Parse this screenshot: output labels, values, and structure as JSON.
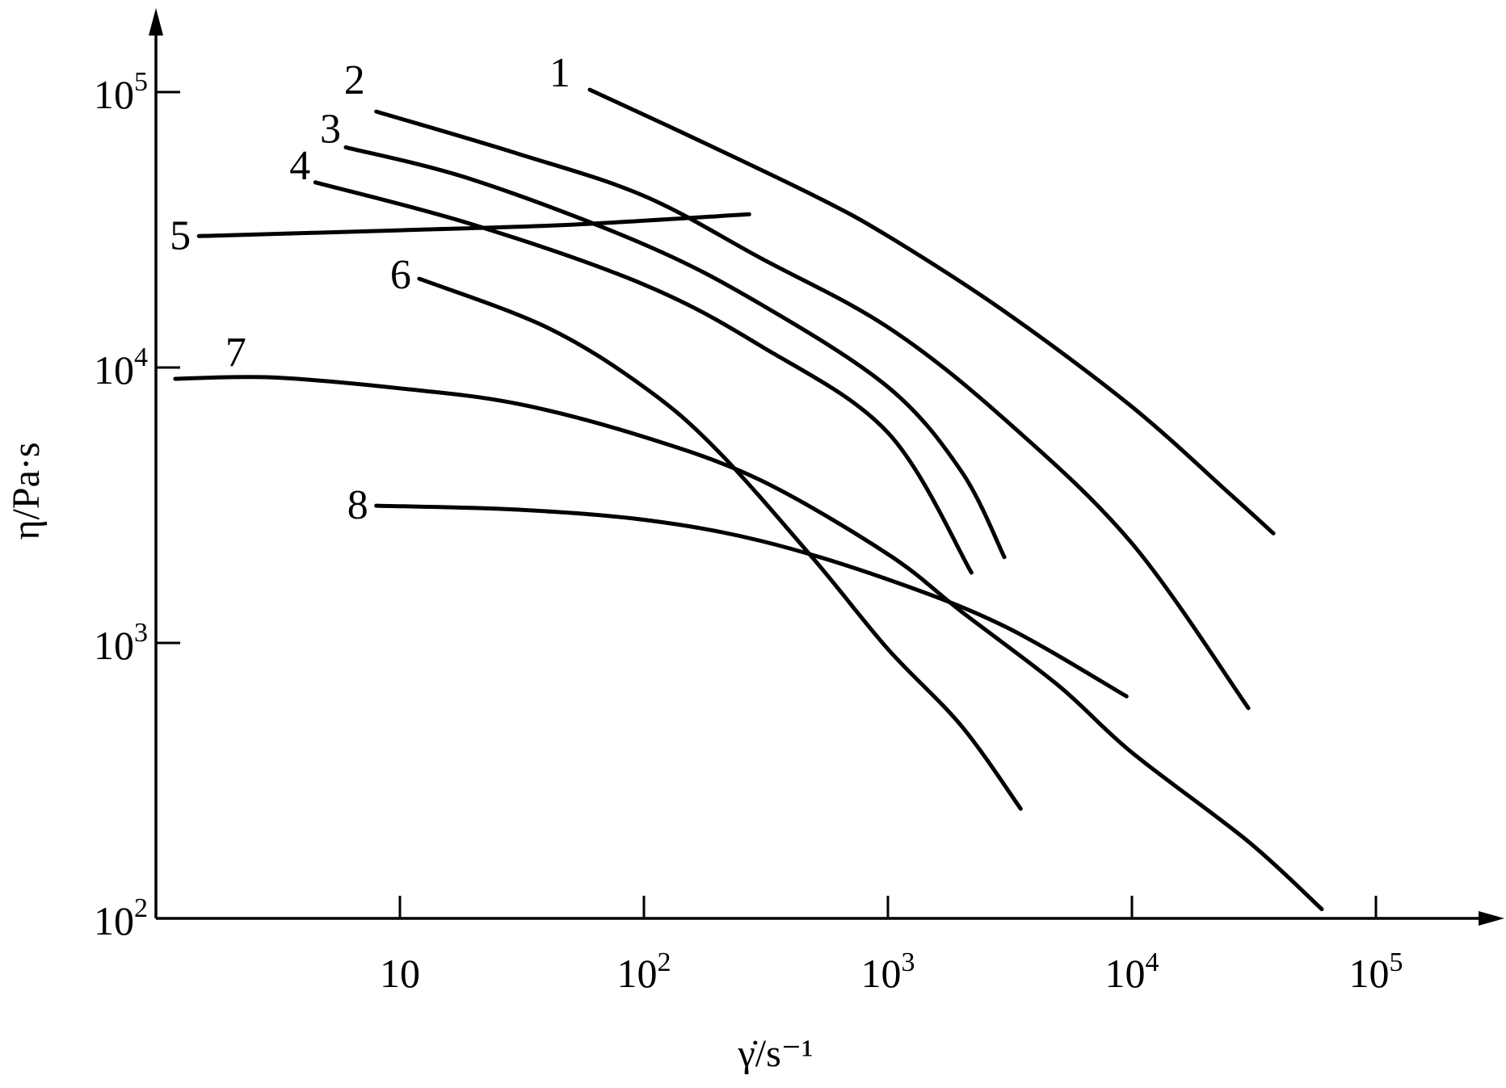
{
  "chart_data": {
    "type": "line",
    "xlabel": "γ̇/s⁻¹",
    "ylabel": "η/Pa·s",
    "x_scale": "log",
    "y_scale": "log",
    "xlim": [
      1,
      250000
    ],
    "ylim": [
      100,
      300000
    ],
    "grid": false,
    "x_ticks": [
      {
        "value": 10,
        "base": "10",
        "exp": ""
      },
      {
        "value": 100,
        "base": "10",
        "exp": "2"
      },
      {
        "value": 1000,
        "base": "10",
        "exp": "3"
      },
      {
        "value": 10000,
        "base": "10",
        "exp": "4"
      },
      {
        "value": 100000,
        "base": "10",
        "exp": "5"
      }
    ],
    "y_ticks": [
      {
        "value": 100,
        "base": "10",
        "exp": "2"
      },
      {
        "value": 1000,
        "base": "10",
        "exp": "3"
      },
      {
        "value": 10000,
        "base": "10",
        "exp": "4"
      },
      {
        "value": 100000,
        "base": "10",
        "exp": "5"
      }
    ],
    "series": [
      {
        "name": "1",
        "points": [
          [
            60,
            102000
          ],
          [
            150,
            70000
          ],
          [
            500,
            42000
          ],
          [
            1000,
            30000
          ],
          [
            3000,
            16000
          ],
          [
            10000,
            7200
          ],
          [
            25000,
            3500
          ],
          [
            38000,
            2500
          ]
        ]
      },
      {
        "name": "2",
        "points": [
          [
            8,
            85000
          ],
          [
            30,
            60000
          ],
          [
            100,
            42000
          ],
          [
            300,
            25000
          ],
          [
            1000,
            14000
          ],
          [
            3000,
            6500
          ],
          [
            10000,
            2300
          ],
          [
            30000,
            580
          ]
        ]
      },
      {
        "name": "3",
        "points": [
          [
            6,
            63000
          ],
          [
            20,
            48000
          ],
          [
            100,
            28000
          ],
          [
            300,
            17000
          ],
          [
            1000,
            8500
          ],
          [
            2000,
            4200
          ],
          [
            3000,
            2050
          ]
        ]
      },
      {
        "name": "4",
        "points": [
          [
            4.5,
            47000
          ],
          [
            20,
            33000
          ],
          [
            100,
            20000
          ],
          [
            300,
            12000
          ],
          [
            1000,
            5800
          ],
          [
            2200,
            1800
          ]
        ]
      },
      {
        "name": "5",
        "points": [
          [
            1.5,
            30000
          ],
          [
            10,
            31500
          ],
          [
            50,
            33000
          ],
          [
            270,
            36000
          ]
        ]
      },
      {
        "name": "6",
        "points": [
          [
            12,
            21000
          ],
          [
            40,
            14000
          ],
          [
            100,
            8500
          ],
          [
            200,
            5000
          ],
          [
            500,
            2000
          ],
          [
            1000,
            950
          ],
          [
            2000,
            500
          ],
          [
            3500,
            250
          ]
        ]
      },
      {
        "name": "7",
        "points": [
          [
            1.2,
            9100
          ],
          [
            3,
            9200
          ],
          [
            10,
            8400
          ],
          [
            30,
            7400
          ],
          [
            100,
            5600
          ],
          [
            300,
            3900
          ],
          [
            1000,
            2100
          ],
          [
            2000,
            1300
          ],
          [
            5000,
            700
          ],
          [
            10000,
            400
          ],
          [
            30000,
            190
          ],
          [
            60000,
            108
          ]
        ]
      },
      {
        "name": "8",
        "points": [
          [
            8,
            3150
          ],
          [
            30,
            3050
          ],
          [
            100,
            2800
          ],
          [
            300,
            2350
          ],
          [
            1000,
            1700
          ],
          [
            3000,
            1150
          ],
          [
            9500,
            640
          ]
        ]
      }
    ]
  }
}
